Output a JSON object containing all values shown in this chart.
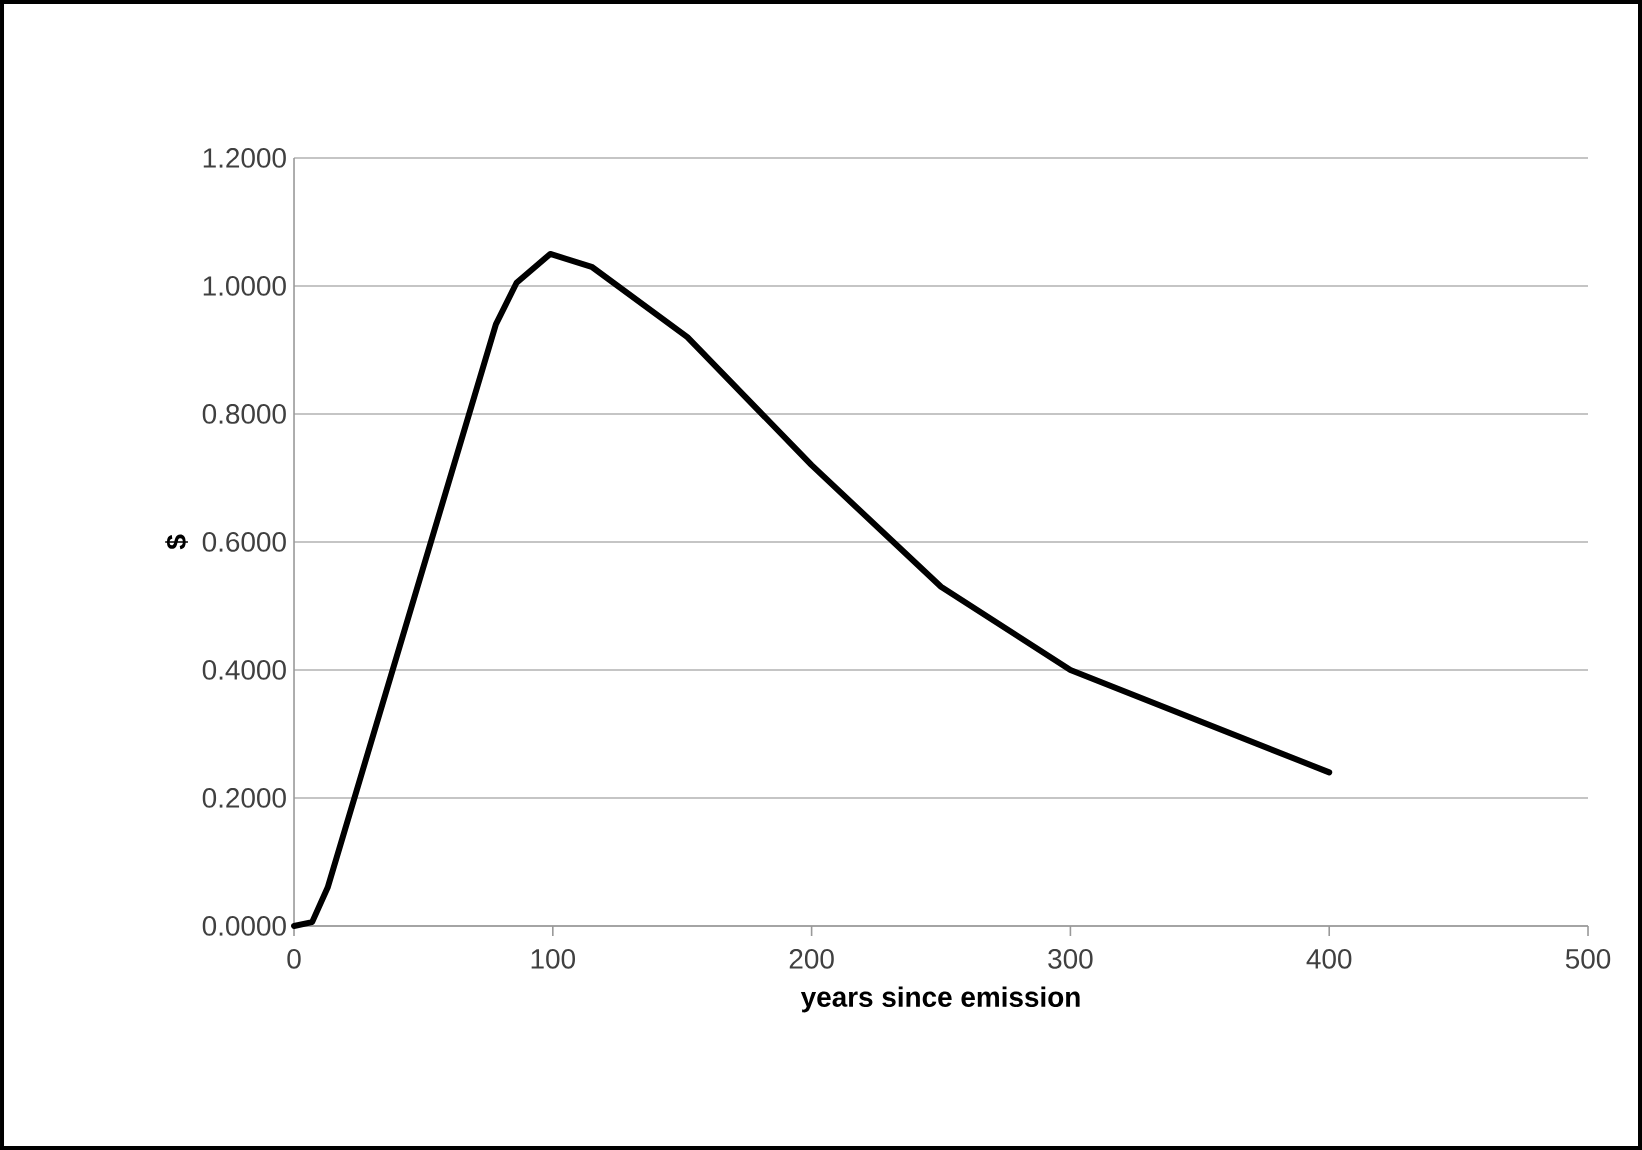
{
  "chart_data": {
    "type": "line",
    "xlabel": "years since emission",
    "ylabel": "$",
    "x": [
      0,
      7,
      13,
      78,
      86,
      99,
      115,
      152,
      200,
      250,
      300,
      400
    ],
    "values": [
      0,
      0.006,
      0.06,
      0.94,
      1.005,
      1.05,
      1.03,
      0.92,
      0.72,
      0.53,
      0.4,
      0.24
    ],
    "color": "#000000",
    "xlim": [
      0,
      500
    ],
    "xticks": [
      0,
      100,
      200,
      300,
      400,
      500
    ],
    "ylim": [
      0,
      1.2
    ],
    "yticks": [
      {
        "value": 0,
        "label": "0.0000"
      },
      {
        "value": 0.2,
        "label": "0.2000"
      },
      {
        "value": 0.4,
        "label": "0.4000"
      },
      {
        "value": 0.6,
        "label": "0.6000"
      },
      {
        "value": 0.8,
        "label": "0.8000"
      },
      {
        "value": 1.0,
        "label": "1.0000"
      },
      {
        "value": 1.2,
        "label": "1.2000"
      }
    ],
    "grid": "y",
    "marker": "none",
    "line_style": "solid"
  }
}
